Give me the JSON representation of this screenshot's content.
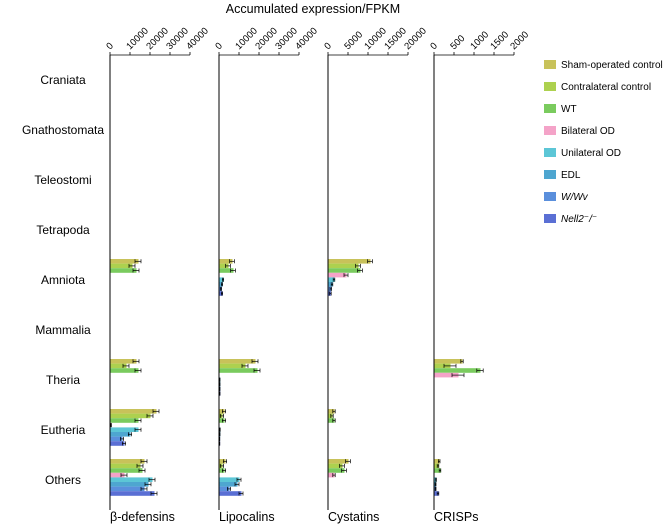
{
  "chart_data": {
    "type": "bar",
    "orientation": "horizontal",
    "title": "Accumulated expression/FPKM",
    "categories": [
      "Craniata",
      "Gnathostomata",
      "Teleostomi",
      "Tetrapoda",
      "Amniota",
      "Mammalia",
      "Theria",
      "Eutheria",
      "Others"
    ],
    "legend": {
      "placement": "right",
      "entries": [
        {
          "label": "Sham-operated control",
          "color": "#C8C25A",
          "italic": false
        },
        {
          "label": "Contralateral control",
          "color": "#ADD14F",
          "italic": false
        },
        {
          "label": "WT",
          "color": "#7ACB5E",
          "italic": false
        },
        {
          "label": "Bilateral OD",
          "color": "#F4A3C8",
          "italic": false
        },
        {
          "label": "Unilateral OD",
          "color": "#5CC6D6",
          "italic": false
        },
        {
          "label": "EDL",
          "color": "#4EA6D0",
          "italic": false
        },
        {
          "label": "W/Wv",
          "color": "#5A8FDC",
          "italic": true
        },
        {
          "label": "Nell2⁻/⁻",
          "color": "#5A6FD4",
          "italic": true
        }
      ]
    },
    "panels": [
      {
        "xlabel": "β-defensins",
        "xlim": [
          0,
          40000
        ],
        "ticks": [
          0,
          10000,
          20000,
          30000,
          40000
        ],
        "tick_labels": [
          "0",
          "10000",
          "20000",
          "30000",
          "40000"
        ],
        "values": {
          "Amniota": [
            14000,
            11000,
            13000,
            0,
            0,
            0,
            0,
            0
          ],
          "Theria": [
            13000,
            8000,
            14000,
            0,
            0,
            0,
            0,
            0
          ],
          "Eutheria": [
            23000,
            20000,
            14000,
            500,
            14000,
            10000,
            6000,
            7000
          ],
          "Others": [
            17000,
            15000,
            16000,
            7000,
            21000,
            19000,
            17000,
            22000
          ]
        },
        "errors": {
          "Amniota": [
            1500,
            1500,
            1500,
            0,
            0,
            0,
            0,
            0
          ],
          "Theria": [
            1500,
            1500,
            1500,
            0,
            0,
            0,
            0,
            0
          ],
          "Eutheria": [
            1500,
            1500,
            1500,
            200,
            1500,
            800,
            800,
            800
          ],
          "Others": [
            1500,
            1500,
            1500,
            1500,
            1500,
            1500,
            1500,
            1500
          ]
        }
      },
      {
        "xlabel": "Lipocalins",
        "xlim": [
          0,
          40000
        ],
        "ticks": [
          0,
          10000,
          20000,
          30000,
          40000
        ],
        "tick_labels": [
          "0",
          "10000",
          "20000",
          "30000",
          "40000"
        ],
        "values": {
          "Amniota": [
            6500,
            4500,
            7000,
            0,
            2000,
            1500,
            1000,
            1500
          ],
          "Theria": [
            18000,
            13000,
            19000,
            0,
            400,
            400,
            400,
            400
          ],
          "Eutheria": [
            2500,
            1500,
            2500,
            0,
            500,
            400,
            300,
            300
          ],
          "Others": [
            3000,
            1500,
            2500,
            0,
            10000,
            9000,
            5000,
            11000
          ]
        },
        "errors": {
          "Amniota": [
            1200,
            1200,
            1200,
            0,
            300,
            300,
            300,
            300
          ],
          "Theria": [
            1500,
            1500,
            1500,
            0,
            100,
            100,
            100,
            100
          ],
          "Eutheria": [
            800,
            800,
            800,
            0,
            100,
            100,
            100,
            100
          ],
          "Others": [
            800,
            800,
            800,
            0,
            1000,
            1000,
            800,
            1000
          ]
        }
      },
      {
        "xlabel": "Cystatins",
        "xlim": [
          0,
          20000
        ],
        "ticks": [
          0,
          5000,
          10000,
          15000,
          20000
        ],
        "tick_labels": [
          "0",
          "5000",
          "10000",
          "15000",
          "20000"
        ],
        "values": {
          "Amniota": [
            10500,
            7500,
            8000,
            4500,
            1500,
            1000,
            700,
            600
          ],
          "Theria": [
            0,
            0,
            0,
            0,
            0,
            0,
            0,
            0
          ],
          "Eutheria": [
            1500,
            1000,
            1500,
            0,
            0,
            0,
            0,
            0
          ],
          "Others": [
            5000,
            3500,
            4000,
            1500,
            0,
            0,
            0,
            0
          ]
        },
        "errors": {
          "Amniota": [
            600,
            600,
            600,
            500,
            200,
            200,
            200,
            200
          ],
          "Theria": [
            0,
            0,
            0,
            0,
            0,
            0,
            0,
            0
          ],
          "Eutheria": [
            300,
            300,
            300,
            0,
            0,
            0,
            0,
            0
          ],
          "Others": [
            600,
            600,
            600,
            300,
            0,
            0,
            0,
            0
          ]
        }
      },
      {
        "xlabel": "CRISPs",
        "xlim": [
          0,
          2000
        ],
        "ticks": [
          0,
          500,
          1000,
          1500,
          2000
        ],
        "tick_labels": [
          "0",
          "500",
          "1000",
          "1500",
          "2000"
        ],
        "values": {
          "Amniota": [
            0,
            0,
            0,
            0,
            0,
            0,
            0,
            0
          ],
          "Theria": [
            700,
            400,
            1150,
            600,
            0,
            0,
            0,
            0
          ],
          "Eutheria": [
            0,
            0,
            0,
            0,
            0,
            0,
            0,
            0
          ],
          "Others": [
            130,
            100,
            150,
            0,
            50,
            40,
            40,
            100
          ]
        },
        "errors": {
          "Amniota": [
            0,
            0,
            0,
            0,
            0,
            0,
            0,
            0
          ],
          "Theria": [
            30,
            150,
            80,
            150,
            0,
            0,
            0,
            0
          ],
          "Eutheria": [
            0,
            0,
            0,
            0,
            0,
            0,
            0,
            0
          ],
          "Others": [
            20,
            20,
            20,
            0,
            10,
            10,
            10,
            20
          ]
        }
      }
    ]
  }
}
